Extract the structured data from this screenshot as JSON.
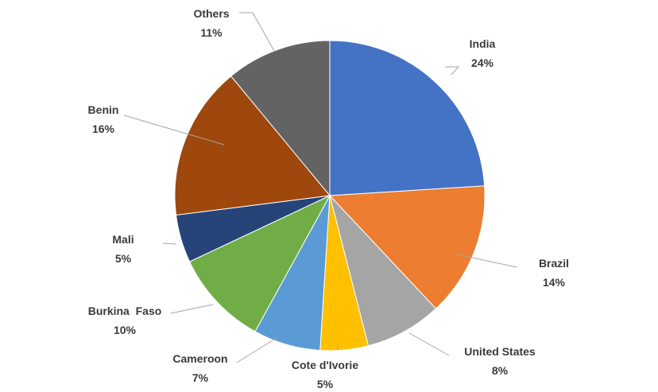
{
  "chart_data": {
    "type": "pie",
    "title": "",
    "slices": [
      {
        "label": "India",
        "value": 24,
        "display": "24%",
        "color": "#4472c4"
      },
      {
        "label": "Brazil",
        "value": 14,
        "display": "14%",
        "color": "#ed7d31"
      },
      {
        "label": "United States",
        "value": 8,
        "display": "8%",
        "color": "#a5a5a5"
      },
      {
        "label": "Cote d'Ivorie",
        "value": 5,
        "display": "5%",
        "color": "#ffc000"
      },
      {
        "label": "Cameroon",
        "value": 7,
        "display": "7%",
        "color": "#5b9bd5"
      },
      {
        "label": "Burkina  Faso",
        "value": 10,
        "display": "10%",
        "color": "#70ad47"
      },
      {
        "label": "Mali",
        "value": 5,
        "display": "5%",
        "color": "#264478"
      },
      {
        "label": "Benin",
        "value": 16,
        "display": "16%",
        "color": "#9e480e"
      },
      {
        "label": "Others",
        "value": 11,
        "display": "11%",
        "color": "#636363"
      }
    ],
    "start_angle": "12 o'clock",
    "direction": "clockwise",
    "legend": "none",
    "data_labels": "outside with leader lines"
  }
}
